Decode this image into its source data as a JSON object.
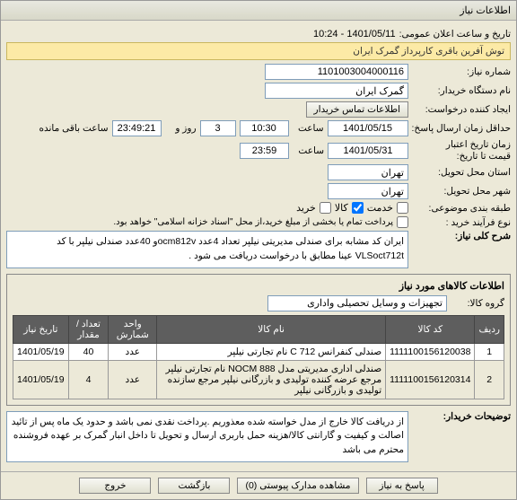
{
  "window": {
    "title": "اطلاعات نیاز"
  },
  "banner": {
    "text": "توش آفرین باقری کارپرداز گمرک ایران"
  },
  "announce": {
    "label": "تاریخ و ساعت اعلان عمومی:",
    "value": "1401/05/11 - 10:24"
  },
  "contact_btn": {
    "label": "اطلاعات تماس خریدار"
  },
  "fields": {
    "request_no": {
      "label": "شماره نیاز:",
      "value": "1101003004000116"
    },
    "buyer_name": {
      "label": "نام دستگاه خریدار:",
      "value": "گمرک ایران"
    },
    "creator": {
      "label": "ایجاد کننده درخواست:"
    },
    "deadline": {
      "label": "حداقل زمان ارسال پاسخ:",
      "date": "1401/05/15",
      "time": "10:30",
      "unit_label": "روز و",
      "days": "3",
      "countdown": "23:49:21",
      "remain": "ساعت باقی مانده"
    },
    "validity": {
      "label": "زمان تاریخ اعتبار",
      "sub": "قیمت تا تاریخ:",
      "date": "1401/05/31",
      "time": "23:59"
    },
    "time_label": "ساعت",
    "request_city": {
      "label": "استان محل تحویل:",
      "value": "تهران"
    },
    "delivery_city": {
      "label": "شهر محل تحویل:",
      "value": "تهران"
    },
    "category": {
      "label": "طبقه بندی موضوعی:",
      "value": "کالا",
      "opt1": "خدمت",
      "opt2": "کالا",
      "opt3": "خرید"
    },
    "process_type": {
      "label": "نوع فرآیند خرید :"
    },
    "payment_note": "پرداخت تمام یا بخشی از مبلغ خرید،از محل \"اسناد خزانه اسلامی\" خواهد بود."
  },
  "general_desc": {
    "label": "شرح کلی نیاز:",
    "text": "ایران کد مشابه برای صندلی مدیریتی نیلپر تعداد 4عدد ocm812vو 40عدد صندلی نیلپر با کد VLSoct712t عینا مطابق با درخواست دریافت می شود ."
  },
  "items_section": {
    "title": "اطلاعات کالاهای مورد نیاز",
    "group_label": "گروه کالا:",
    "group_value": "تجهیزات و وسایل تحصیلی واداری",
    "columns": {
      "row": "ردیف",
      "code": "کد کالا",
      "name": "نام کالا",
      "unit": "واحد شمارش",
      "qty": "تعداد / مقدار",
      "date": "تاریخ نیاز"
    },
    "rows": [
      {
        "row": "1",
        "code": "1111100156120038",
        "name": "صندلی کنفرانس C 712 نام تجارتی نیلپر",
        "unit": "عدد",
        "qty": "40",
        "date": "1401/05/19"
      },
      {
        "row": "2",
        "code": "1111100156120314",
        "name": "صندلی اداری مدیریتی مدل NOCM 888 نام تجارتی نیلپر مرجع عرضه کننده تولیدی و بازرگانی نیلپر مرجع سازنده تولیدی و بازرگانی نیلپر",
        "unit": "عدد",
        "qty": "4",
        "date": "1401/05/19"
      }
    ]
  },
  "buyer_notes": {
    "label": "توضیحات خریدار:",
    "text": "از دریافت کالا خارج از مدل خواسته شده معذوریم .پرداخت نقدی نمی باشد و حدود یک ماه پس از تائید اصالت و کیفیت و گارانتی کالا/هزینه حمل باربری ارسال و تحویل تا داخل انبار گمرک بر عهده فروشنده محترم می باشد"
  },
  "footer": {
    "btn_respond": "پاسخ به نیاز",
    "btn_attach": "مشاهده مدارک پیوستی (0)",
    "btn_back": "بازگشت",
    "btn_exit": "خروج"
  }
}
